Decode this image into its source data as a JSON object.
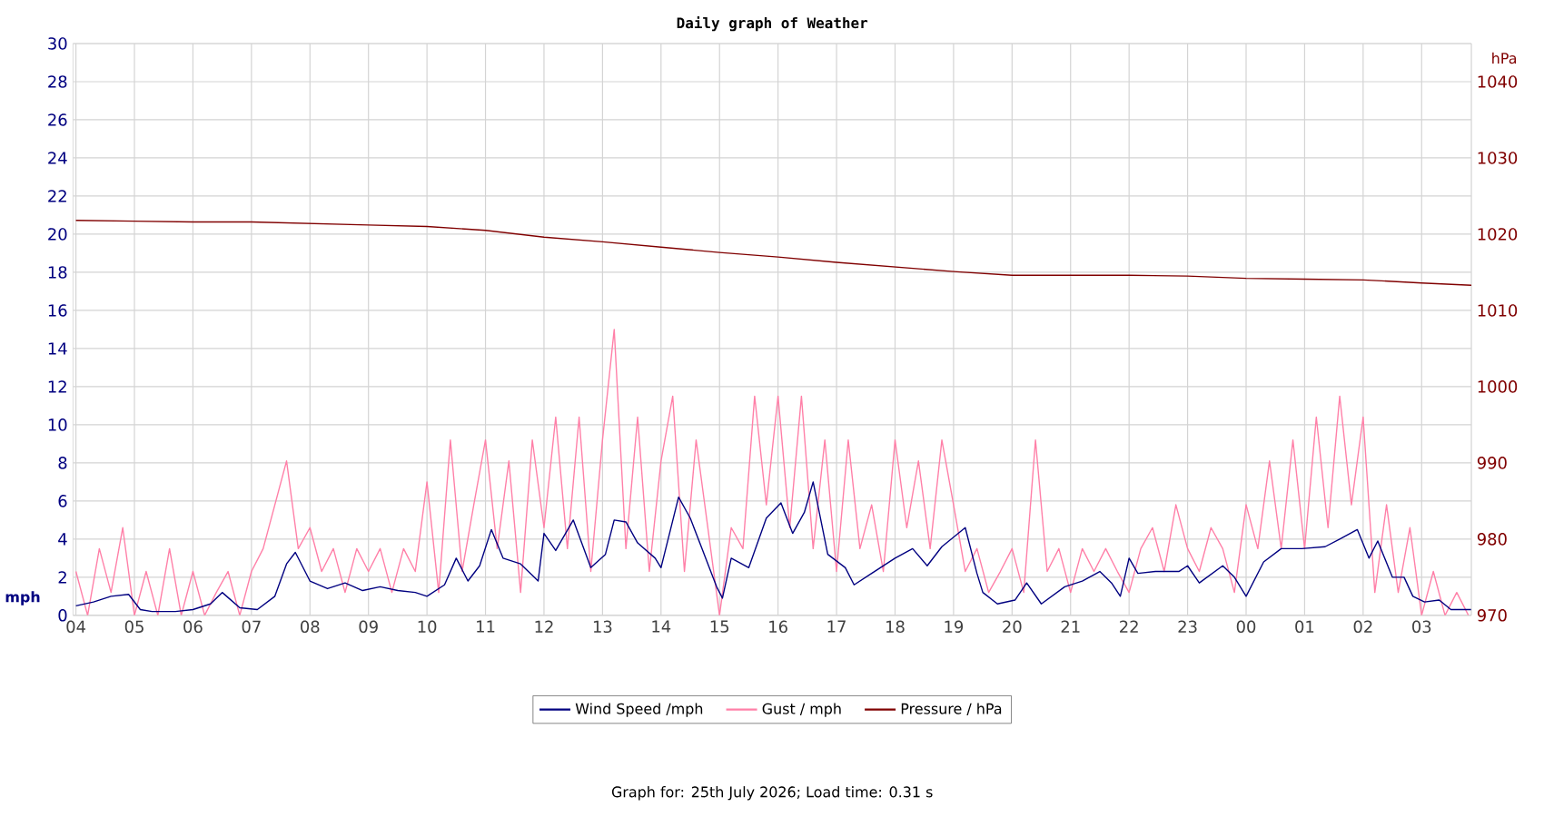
{
  "chart_data": {
    "type": "line",
    "title": "Daily graph of Weather",
    "ylabel": "mph",
    "y2label": "hPa",
    "xlim": [
      "2026-07-24T03:57",
      "2026-07-25T03:51"
    ],
    "xticks": [
      {
        "value": "2026-07-24T04:00",
        "label": "04"
      },
      {
        "value": "2026-07-24T05:00",
        "label": "05"
      },
      {
        "value": "2026-07-24T06:00",
        "label": "06"
      },
      {
        "value": "2026-07-24T07:00",
        "label": "07"
      },
      {
        "value": "2026-07-24T08:00",
        "label": "08"
      },
      {
        "value": "2026-07-24T09:00",
        "label": "09"
      },
      {
        "value": "2026-07-24T10:00",
        "label": "10"
      },
      {
        "value": "2026-07-24T11:00",
        "label": "11"
      },
      {
        "value": "2026-07-24T12:00",
        "label": "12"
      },
      {
        "value": "2026-07-24T13:00",
        "label": "13"
      },
      {
        "value": "2026-07-24T14:00",
        "label": "14"
      },
      {
        "value": "2026-07-24T15:00",
        "label": "15"
      },
      {
        "value": "2026-07-24T16:00",
        "label": "16"
      },
      {
        "value": "2026-07-24T17:00",
        "label": "17"
      },
      {
        "value": "2026-07-24T18:00",
        "label": "18"
      },
      {
        "value": "2026-07-24T19:00",
        "label": "19"
      },
      {
        "value": "2026-07-24T20:00",
        "label": "20"
      },
      {
        "value": "2026-07-24T21:00",
        "label": "21"
      },
      {
        "value": "2026-07-24T22:00",
        "label": "22"
      },
      {
        "value": "2026-07-24T23:00",
        "label": "23"
      },
      {
        "value": "2026-07-25T00:00",
        "label": "00"
      },
      {
        "value": "2026-07-25T01:00",
        "label": "01"
      },
      {
        "value": "2026-07-25T02:00",
        "label": "02"
      },
      {
        "value": "2026-07-25T03:00",
        "label": "03"
      }
    ],
    "ylim": [
      0,
      30
    ],
    "yticks": [
      0,
      2,
      4,
      6,
      8,
      10,
      12,
      14,
      16,
      18,
      20,
      22,
      24,
      26,
      28,
      30
    ],
    "y2lim": [
      970,
      1045
    ],
    "y2ticks": [
      970,
      980,
      990,
      1000,
      1010,
      1020,
      1030,
      1040
    ],
    "grid": true,
    "legend": "bottom",
    "marker": "none",
    "line_style": "solid",
    "annotations": [
      "Graph for: 25th July 2026; Load time: 0.31 s"
    ],
    "series": [
      {
        "name": "Wind Speed /mph",
        "color": "#000080",
        "x": [
          "2026-07-24T04:00",
          "2026-07-24T04:18",
          "2026-07-24T04:36",
          "2026-07-24T04:54",
          "2026-07-24T05:06",
          "2026-07-24T05:18",
          "2026-07-24T05:42",
          "2026-07-24T06:00",
          "2026-07-24T06:18",
          "2026-07-24T06:30",
          "2026-07-24T06:48",
          "2026-07-24T07:06",
          "2026-07-24T07:24",
          "2026-07-24T07:36",
          "2026-07-24T07:45",
          "2026-07-24T08:00",
          "2026-07-24T08:18",
          "2026-07-24T08:36",
          "2026-07-24T08:54",
          "2026-07-24T09:12",
          "2026-07-24T09:30",
          "2026-07-24T09:48",
          "2026-07-24T10:00",
          "2026-07-24T10:18",
          "2026-07-24T10:30",
          "2026-07-24T10:42",
          "2026-07-24T10:54",
          "2026-07-24T11:06",
          "2026-07-24T11:18",
          "2026-07-24T11:36",
          "2026-07-24T11:54",
          "2026-07-24T12:00",
          "2026-07-24T12:12",
          "2026-07-24T12:30",
          "2026-07-24T12:48",
          "2026-07-24T13:03",
          "2026-07-24T13:12",
          "2026-07-24T13:24",
          "2026-07-24T13:36",
          "2026-07-24T13:54",
          "2026-07-24T14:00",
          "2026-07-24T14:18",
          "2026-07-24T14:30",
          "2026-07-24T14:42",
          "2026-07-24T14:57",
          "2026-07-24T15:03",
          "2026-07-24T15:12",
          "2026-07-24T15:30",
          "2026-07-24T15:48",
          "2026-07-24T16:03",
          "2026-07-24T16:15",
          "2026-07-24T16:27",
          "2026-07-24T16:36",
          "2026-07-24T16:51",
          "2026-07-24T17:09",
          "2026-07-24T17:18",
          "2026-07-24T17:36",
          "2026-07-24T18:00",
          "2026-07-24T18:18",
          "2026-07-24T18:33",
          "2026-07-24T18:48",
          "2026-07-24T19:12",
          "2026-07-24T19:24",
          "2026-07-24T19:30",
          "2026-07-24T19:45",
          "2026-07-24T20:03",
          "2026-07-24T20:15",
          "2026-07-24T20:30",
          "2026-07-24T20:54",
          "2026-07-24T21:12",
          "2026-07-24T21:30",
          "2026-07-24T21:42",
          "2026-07-24T21:51",
          "2026-07-24T22:00",
          "2026-07-24T22:09",
          "2026-07-24T22:27",
          "2026-07-24T22:51",
          "2026-07-24T23:00",
          "2026-07-24T23:12",
          "2026-07-24T23:36",
          "2026-07-24T23:48",
          "2026-07-25T00:00",
          "2026-07-25T00:18",
          "2026-07-25T00:36",
          "2026-07-25T00:57",
          "2026-07-25T01:21",
          "2026-07-25T01:36",
          "2026-07-25T01:54",
          "2026-07-25T02:06",
          "2026-07-25T02:15",
          "2026-07-25T02:30",
          "2026-07-25T02:42",
          "2026-07-25T02:51",
          "2026-07-25T03:03",
          "2026-07-25T03:18",
          "2026-07-25T03:30",
          "2026-07-25T03:51"
        ],
        "values": [
          0.5,
          0.7,
          1.0,
          1.1,
          0.3,
          0.2,
          0.2,
          0.3,
          0.6,
          1.2,
          0.4,
          0.3,
          1.0,
          2.7,
          3.3,
          1.8,
          1.4,
          1.7,
          1.3,
          1.5,
          1.3,
          1.2,
          1.0,
          1.6,
          3.0,
          1.8,
          2.6,
          4.5,
          3.0,
          2.7,
          1.8,
          4.3,
          3.4,
          5.0,
          2.5,
          3.2,
          5.0,
          4.9,
          3.8,
          3.0,
          2.5,
          6.2,
          5.1,
          3.5,
          1.5,
          0.9,
          3.0,
          2.5,
          5.1,
          5.9,
          4.3,
          5.4,
          7.0,
          3.2,
          2.5,
          1.6,
          2.2,
          3.0,
          3.5,
          2.6,
          3.6,
          4.6,
          2.2,
          1.2,
          0.6,
          0.8,
          1.7,
          0.6,
          1.5,
          1.8,
          2.3,
          1.7,
          1.0,
          3.0,
          2.2,
          2.3,
          2.3,
          2.6,
          1.7,
          2.6,
          2.0,
          1.0,
          2.8,
          3.5,
          3.5,
          3.6,
          4.0,
          4.5,
          3.0,
          3.9,
          2.0,
          2.0,
          1.0,
          0.7,
          0.8,
          0.3,
          0.3
        ]
      },
      {
        "name": "Gust / mph",
        "color": "#ff80a8",
        "x": [
          "2026-07-24T04:00",
          "2026-07-24T04:12",
          "2026-07-24T04:24",
          "2026-07-24T04:36",
          "2026-07-24T04:48",
          "2026-07-24T05:00",
          "2026-07-24T05:12",
          "2026-07-24T05:24",
          "2026-07-24T05:36",
          "2026-07-24T05:48",
          "2026-07-24T06:00",
          "2026-07-24T06:12",
          "2026-07-24T06:24",
          "2026-07-24T06:36",
          "2026-07-24T06:48",
          "2026-07-24T07:00",
          "2026-07-24T07:12",
          "2026-07-24T07:24",
          "2026-07-24T07:36",
          "2026-07-24T07:48",
          "2026-07-24T08:00",
          "2026-07-24T08:12",
          "2026-07-24T08:24",
          "2026-07-24T08:36",
          "2026-07-24T08:48",
          "2026-07-24T09:00",
          "2026-07-24T09:12",
          "2026-07-24T09:24",
          "2026-07-24T09:36",
          "2026-07-24T09:48",
          "2026-07-24T10:00",
          "2026-07-24T10:12",
          "2026-07-24T10:24",
          "2026-07-24T10:36",
          "2026-07-24T10:48",
          "2026-07-24T11:00",
          "2026-07-24T11:12",
          "2026-07-24T11:24",
          "2026-07-24T11:36",
          "2026-07-24T11:48",
          "2026-07-24T12:00",
          "2026-07-24T12:12",
          "2026-07-24T12:24",
          "2026-07-24T12:36",
          "2026-07-24T12:48",
          "2026-07-24T13:00",
          "2026-07-24T13:12",
          "2026-07-24T13:24",
          "2026-07-24T13:36",
          "2026-07-24T13:48",
          "2026-07-24T14:00",
          "2026-07-24T14:12",
          "2026-07-24T14:24",
          "2026-07-24T14:36",
          "2026-07-24T14:48",
          "2026-07-24T15:00",
          "2026-07-24T15:12",
          "2026-07-24T15:24",
          "2026-07-24T15:36",
          "2026-07-24T15:48",
          "2026-07-24T16:00",
          "2026-07-24T16:12",
          "2026-07-24T16:24",
          "2026-07-24T16:36",
          "2026-07-24T16:48",
          "2026-07-24T17:00",
          "2026-07-24T17:12",
          "2026-07-24T17:24",
          "2026-07-24T17:36",
          "2026-07-24T17:48",
          "2026-07-24T18:00",
          "2026-07-24T18:12",
          "2026-07-24T18:24",
          "2026-07-24T18:36",
          "2026-07-24T18:48",
          "2026-07-24T19:00",
          "2026-07-24T19:12",
          "2026-07-24T19:24",
          "2026-07-24T19:36",
          "2026-07-24T19:48",
          "2026-07-24T20:00",
          "2026-07-24T20:12",
          "2026-07-24T20:24",
          "2026-07-24T20:36",
          "2026-07-24T20:48",
          "2026-07-24T21:00",
          "2026-07-24T21:12",
          "2026-07-24T21:24",
          "2026-07-24T21:36",
          "2026-07-24T21:48",
          "2026-07-24T22:00",
          "2026-07-24T22:12",
          "2026-07-24T22:24",
          "2026-07-24T22:36",
          "2026-07-24T22:48",
          "2026-07-24T23:00",
          "2026-07-24T23:12",
          "2026-07-24T23:24",
          "2026-07-24T23:36",
          "2026-07-24T23:48",
          "2026-07-25T00:00",
          "2026-07-25T00:12",
          "2026-07-25T00:24",
          "2026-07-25T00:36",
          "2026-07-25T00:48",
          "2026-07-25T01:00",
          "2026-07-25T01:12",
          "2026-07-25T01:24",
          "2026-07-25T01:36",
          "2026-07-25T01:48",
          "2026-07-25T02:00",
          "2026-07-25T02:12",
          "2026-07-25T02:24",
          "2026-07-25T02:36",
          "2026-07-25T02:48",
          "2026-07-25T03:00",
          "2026-07-25T03:12",
          "2026-07-25T03:24",
          "2026-07-25T03:36",
          "2026-07-25T03:48"
        ],
        "values": [
          2.3,
          0,
          3.5,
          1.2,
          4.6,
          0,
          2.3,
          0,
          3.5,
          0,
          2.3,
          0,
          1.2,
          2.3,
          0,
          2.3,
          3.5,
          5.8,
          8.1,
          3.5,
          4.6,
          2.3,
          3.5,
          1.2,
          3.5,
          2.3,
          3.5,
          1.2,
          3.5,
          2.3,
          7.0,
          1.2,
          9.2,
          2.3,
          5.8,
          9.2,
          3.5,
          8.1,
          1.2,
          9.2,
          4.6,
          10.4,
          3.5,
          10.4,
          2.3,
          9.2,
          15.0,
          3.5,
          10.4,
          2.3,
          8.1,
          11.5,
          2.3,
          9.2,
          4.6,
          0,
          4.6,
          3.5,
          11.5,
          5.8,
          11.5,
          4.6,
          11.5,
          3.5,
          9.2,
          2.3,
          9.2,
          3.5,
          5.8,
          2.3,
          9.2,
          4.6,
          8.1,
          3.5,
          9.2,
          5.8,
          2.3,
          3.5,
          1.2,
          2.3,
          3.5,
          1.2,
          9.2,
          2.3,
          3.5,
          1.2,
          3.5,
          2.3,
          3.5,
          2.3,
          1.2,
          3.5,
          4.6,
          2.3,
          5.8,
          3.5,
          2.3,
          4.6,
          3.5,
          1.2,
          5.8,
          3.5,
          8.1,
          3.5,
          9.2,
          3.5,
          10.4,
          4.6,
          11.5,
          5.8,
          10.4,
          1.2,
          5.8,
          1.2,
          4.6,
          0,
          2.3,
          0,
          1.2,
          0
        ]
      },
      {
        "name": "Pressure / hPa",
        "color": "#800000",
        "axis": "y2",
        "x": [
          "2026-07-24T04:00",
          "2026-07-24T05:00",
          "2026-07-24T06:00",
          "2026-07-24T07:00",
          "2026-07-24T08:00",
          "2026-07-24T09:00",
          "2026-07-24T10:00",
          "2026-07-24T11:00",
          "2026-07-24T12:00",
          "2026-07-24T13:00",
          "2026-07-24T14:00",
          "2026-07-24T15:00",
          "2026-07-24T16:00",
          "2026-07-24T17:00",
          "2026-07-24T18:00",
          "2026-07-24T19:00",
          "2026-07-24T20:00",
          "2026-07-24T21:00",
          "2026-07-24T22:00",
          "2026-07-24T23:00",
          "2026-07-25T00:00",
          "2026-07-25T01:00",
          "2026-07-25T02:00",
          "2026-07-25T03:00",
          "2026-07-25T03:51"
        ],
        "values": [
          1021.8,
          1021.7,
          1021.6,
          1021.6,
          1021.4,
          1021.2,
          1021.0,
          1020.5,
          1019.6,
          1019.0,
          1018.3,
          1017.6,
          1017.0,
          1016.3,
          1015.7,
          1015.1,
          1014.6,
          1014.6,
          1014.6,
          1014.5,
          1014.2,
          1014.1,
          1014.0,
          1013.6,
          1013.3
        ]
      }
    ]
  }
}
